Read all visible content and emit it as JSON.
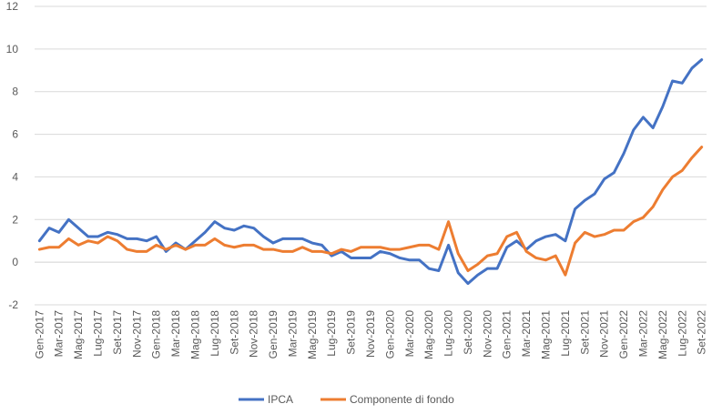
{
  "chart_data": {
    "type": "line",
    "title": "",
    "xlabel": "",
    "ylabel": "",
    "ylim": [
      -2,
      12
    ],
    "yticks": [
      -2,
      0,
      2,
      4,
      6,
      8,
      10,
      12
    ],
    "grid": true,
    "legend_position": "bottom",
    "categories": [
      "Gen-2017",
      "Feb-2017",
      "Mar-2017",
      "Apr-2017",
      "Mag-2017",
      "Giu-2017",
      "Lug-2017",
      "Ago-2017",
      "Set-2017",
      "Ott-2017",
      "Nov-2017",
      "Dic-2017",
      "Gen-2018",
      "Feb-2018",
      "Mar-2018",
      "Apr-2018",
      "Mag-2018",
      "Giu-2018",
      "Lug-2018",
      "Ago-2018",
      "Set-2018",
      "Ott-2018",
      "Nov-2018",
      "Dic-2018",
      "Gen-2019",
      "Feb-2019",
      "Mar-2019",
      "Apr-2019",
      "Mag-2019",
      "Giu-2019",
      "Lug-2019",
      "Ago-2019",
      "Set-2019",
      "Ott-2019",
      "Nov-2019",
      "Dic-2019",
      "Gen-2020",
      "Feb-2020",
      "Mar-2020",
      "Apr-2020",
      "Mag-2020",
      "Giu-2020",
      "Lug-2020",
      "Ago-2020",
      "Set-2020",
      "Ott-2020",
      "Nov-2020",
      "Dic-2020",
      "Gen-2021",
      "Feb-2021",
      "Mar-2021",
      "Apr-2021",
      "Mag-2021",
      "Giu-2021",
      "Lug-2021",
      "Ago-2021",
      "Set-2021",
      "Ott-2021",
      "Nov-2021",
      "Dic-2021",
      "Gen-2022",
      "Feb-2022",
      "Mar-2022",
      "Apr-2022",
      "Mag-2022",
      "Giu-2022",
      "Lug-2022",
      "Ago-2022",
      "Set-2022"
    ],
    "tick_labels": [
      "Gen-2017",
      "Mar-2017",
      "Mag-2017",
      "Lug-2017",
      "Set-2017",
      "Nov-2017",
      "Gen-2018",
      "Mar-2018",
      "Mag-2018",
      "Lug-2018",
      "Set-2018",
      "Nov-2018",
      "Gen-2019",
      "Mar-2019",
      "Mag-2019",
      "Lug-2019",
      "Set-2019",
      "Nov-2019",
      "Gen-2020",
      "Mar-2020",
      "Mag-2020",
      "Lug-2020",
      "Set-2020",
      "Nov-2020",
      "Gen-2021",
      "Mar-2021",
      "Mag-2021",
      "Lug-2021",
      "Set-2021",
      "Nov-2021",
      "Gen-2022",
      "Mar-2022",
      "Mag-2022",
      "Lug-2022",
      "Set-2022"
    ],
    "series": [
      {
        "name": "IPCA",
        "color": "#4472C4",
        "values": [
          1.0,
          1.6,
          1.4,
          2.0,
          1.6,
          1.2,
          1.2,
          1.4,
          1.3,
          1.1,
          1.1,
          1.0,
          1.2,
          0.5,
          0.9,
          0.6,
          1.0,
          1.4,
          1.9,
          1.6,
          1.5,
          1.7,
          1.6,
          1.2,
          0.9,
          1.1,
          1.1,
          1.1,
          0.9,
          0.8,
          0.3,
          0.5,
          0.2,
          0.2,
          0.2,
          0.5,
          0.4,
          0.2,
          0.1,
          0.1,
          -0.3,
          -0.4,
          0.8,
          -0.5,
          -1.0,
          -0.6,
          -0.3,
          -0.3,
          0.7,
          1.0,
          0.6,
          1.0,
          1.2,
          1.3,
          1.0,
          2.5,
          2.9,
          3.2,
          3.9,
          4.2,
          5.1,
          6.2,
          6.8,
          6.3,
          7.3,
          8.5,
          8.4,
          9.1,
          9.5
        ]
      },
      {
        "name": "Componente di fondo",
        "color": "#ED7D31",
        "values": [
          0.6,
          0.7,
          0.7,
          1.1,
          0.8,
          1.0,
          0.9,
          1.2,
          1.0,
          0.6,
          0.5,
          0.5,
          0.8,
          0.6,
          0.8,
          0.6,
          0.8,
          0.8,
          1.1,
          0.8,
          0.7,
          0.8,
          0.8,
          0.6,
          0.6,
          0.5,
          0.5,
          0.7,
          0.5,
          0.5,
          0.4,
          0.6,
          0.5,
          0.7,
          0.7,
          0.7,
          0.6,
          0.6,
          0.7,
          0.8,
          0.8,
          0.6,
          1.9,
          0.4,
          -0.4,
          -0.1,
          0.3,
          0.4,
          1.2,
          1.4,
          0.5,
          0.2,
          0.1,
          0.3,
          -0.6,
          0.9,
          1.4,
          1.2,
          1.3,
          1.5,
          1.5,
          1.9,
          2.1,
          2.6,
          3.4,
          4.0,
          4.3,
          4.9,
          5.4
        ]
      }
    ]
  }
}
